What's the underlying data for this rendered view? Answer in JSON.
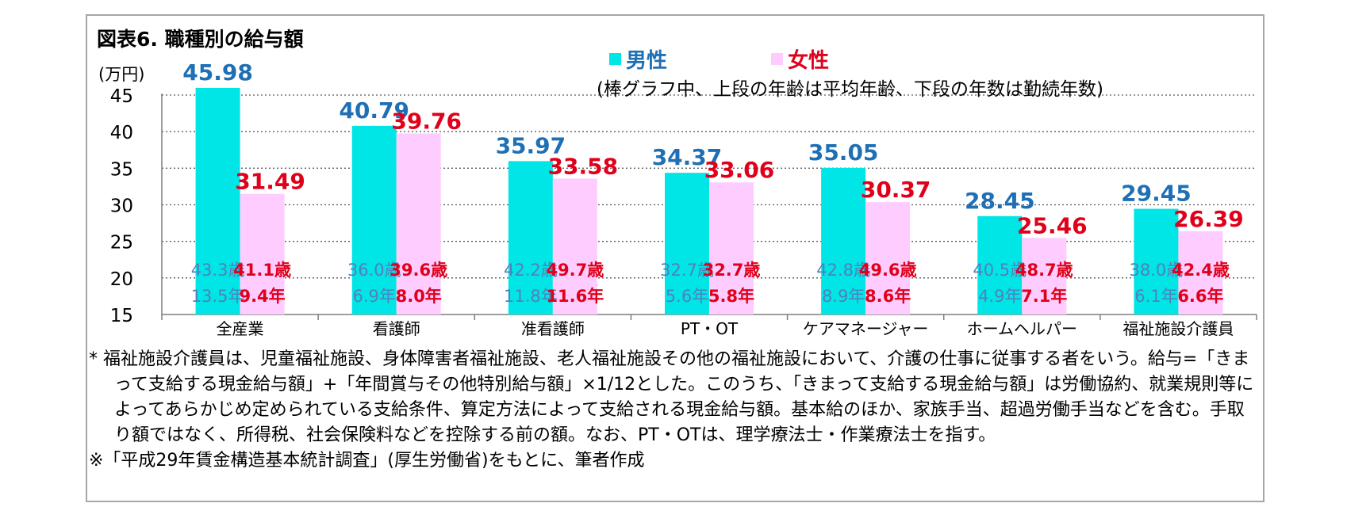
{
  "title": "図表6.  職種別の給与額",
  "unit": "(万円)",
  "subtitle": "(棒グラフ中、上段の年齢は平均年齢、下段の年数は勤続年数)",
  "colors": {
    "male_bar": "#00e5e5",
    "female_bar": "#ffccff",
    "male_text": "#1f6fb5",
    "female_text": "#e0001a",
    "male_inner_text": "#4f81bd",
    "grid": "#595959",
    "frame": "#a6a6a6"
  },
  "legend": {
    "male": "男性",
    "female": "女性"
  },
  "chart_data": {
    "type": "bar",
    "categories": [
      "全産業",
      "看護師",
      "准看護師",
      "PT・OT",
      "ケアマネージャー",
      "ホームヘルパー",
      "福祉施設介護員"
    ],
    "series": [
      {
        "name": "男性",
        "values": [
          45.98,
          40.79,
          35.97,
          34.37,
          35.05,
          28.45,
          29.45
        ],
        "value_labels": [
          "45.98",
          "40.79",
          "35.97",
          "34.37",
          "35.05",
          "28.45",
          "29.45"
        ],
        "ages": [
          "43.3歳",
          "36.0歳",
          "42.2歳",
          "32.7歳",
          "42.8歳",
          "40.5歳",
          "38.0歳"
        ],
        "tenure": [
          "13.5年",
          "6.9年",
          "11.8年",
          "5.6年",
          "8.9年",
          "4.9年",
          "6.1年"
        ]
      },
      {
        "name": "女性",
        "values": [
          31.49,
          39.76,
          33.58,
          33.06,
          30.37,
          25.46,
          26.39
        ],
        "value_labels": [
          "31.49",
          "39.76",
          "33.58",
          "33.06",
          "30.37",
          "25.46",
          "26.39"
        ],
        "ages": [
          "41.1歳",
          "39.6歳",
          "49.7歳",
          "32.7歳",
          "49.6歳",
          "48.7歳",
          "42.4歳"
        ],
        "tenure": [
          "9.4年",
          "8.0年",
          "11.6年",
          "5.8年",
          "8.6年",
          "7.1年",
          "6.6年"
        ]
      }
    ],
    "ylim": [
      15,
      45
    ],
    "yticks": [
      15,
      20,
      25,
      30,
      35,
      40,
      45
    ],
    "grid": true,
    "legend_position": "top-center"
  },
  "notes": {
    "line1": "* 福祉施設介護員は、児童福祉施設、身体障害者福祉施設、老人福祉施設その他の福祉施設において、介護の仕事に従事する者をいう。給与=「きまって支給する現金給与額」+「年間賞与その他特別給与額」×1/12とした。このうち、「きまって支給する現金給与額」は労働協約、就業規則等によってあらかじめ定められている支給条件、算定方法によって支給される現金給与額。基本給のほか、家族手当、超過労働手当などを含む。手取り額ではなく、所得税、社会保険料などを控除する前の額。なお、PT・OTは、理学療法士・作業療法士を指す。",
    "line2": "※「平成29年賃金構造基本統計調査」(厚生労働省)をもとに、筆者作成"
  }
}
